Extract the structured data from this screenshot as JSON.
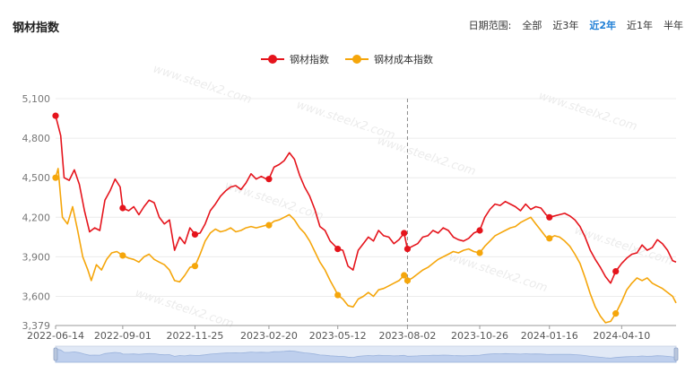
{
  "header": {
    "title": "钢材指数",
    "range_label": "日期范围:",
    "range_options": [
      "全部",
      "近3年",
      "近2年",
      "近1年",
      "半年"
    ],
    "active_range": "近2年"
  },
  "watermark": "www.steelx2.com",
  "colors": {
    "steel": "#e5141c",
    "cost": "#f5a60b",
    "accent": "#1f7fd6"
  },
  "chart_data": {
    "type": "line",
    "x_tick_labels": [
      "2022-06-14",
      "2022-09-01",
      "2022-11-25",
      "2023-02-20",
      "2023-05-12",
      "2023-08-02",
      "2023-10-26",
      "2024-01-16",
      "2024-04-10"
    ],
    "x_marker_line": "2023-08-02",
    "y_ticks": [
      3379,
      3600,
      3900,
      4200,
      4500,
      4800,
      5100
    ],
    "y_tick_labels": [
      "3,379",
      "3,600",
      "3,900",
      "4,200",
      "4,500",
      "4,800",
      "5,100"
    ],
    "ylim": [
      3379,
      5100
    ],
    "grid": true,
    "legend_position": "top-center",
    "series": [
      {
        "name": "钢材指数",
        "color": "#e5141c",
        "points": [
          [
            "2022-06-14",
            4970
          ],
          [
            "2022-06-20",
            4820
          ],
          [
            "2022-06-24",
            4500
          ],
          [
            "2022-06-30",
            4480
          ],
          [
            "2022-07-06",
            4560
          ],
          [
            "2022-07-12",
            4450
          ],
          [
            "2022-07-18",
            4250
          ],
          [
            "2022-07-24",
            4090
          ],
          [
            "2022-07-30",
            4120
          ],
          [
            "2022-08-05",
            4100
          ],
          [
            "2022-08-11",
            4330
          ],
          [
            "2022-08-17",
            4400
          ],
          [
            "2022-08-23",
            4490
          ],
          [
            "2022-08-29",
            4430
          ],
          [
            "2022-09-01",
            4270
          ],
          [
            "2022-09-08",
            4250
          ],
          [
            "2022-09-14",
            4280
          ],
          [
            "2022-09-20",
            4220
          ],
          [
            "2022-09-26",
            4280
          ],
          [
            "2022-10-02",
            4330
          ],
          [
            "2022-10-08",
            4310
          ],
          [
            "2022-10-14",
            4200
          ],
          [
            "2022-10-20",
            4150
          ],
          [
            "2022-10-26",
            4180
          ],
          [
            "2022-11-01",
            3950
          ],
          [
            "2022-11-07",
            4050
          ],
          [
            "2022-11-13",
            4000
          ],
          [
            "2022-11-19",
            4120
          ],
          [
            "2022-11-25",
            4070
          ],
          [
            "2022-12-01",
            4080
          ],
          [
            "2022-12-07",
            4150
          ],
          [
            "2022-12-13",
            4250
          ],
          [
            "2022-12-19",
            4300
          ],
          [
            "2022-12-25",
            4360
          ],
          [
            "2022-12-31",
            4400
          ],
          [
            "2023-01-06",
            4430
          ],
          [
            "2023-01-12",
            4440
          ],
          [
            "2023-01-18",
            4410
          ],
          [
            "2023-01-24",
            4460
          ],
          [
            "2023-01-30",
            4530
          ],
          [
            "2023-02-05",
            4490
          ],
          [
            "2023-02-11",
            4510
          ],
          [
            "2023-02-17",
            4490
          ],
          [
            "2023-02-20",
            4490
          ],
          [
            "2023-02-26",
            4580
          ],
          [
            "2023-03-04",
            4600
          ],
          [
            "2023-03-10",
            4630
          ],
          [
            "2023-03-16",
            4690
          ],
          [
            "2023-03-22",
            4640
          ],
          [
            "2023-03-28",
            4520
          ],
          [
            "2023-04-03",
            4430
          ],
          [
            "2023-04-09",
            4360
          ],
          [
            "2023-04-15",
            4260
          ],
          [
            "2023-04-21",
            4130
          ],
          [
            "2023-04-27",
            4100
          ],
          [
            "2023-05-03",
            4020
          ],
          [
            "2023-05-09",
            3980
          ],
          [
            "2023-05-12",
            3960
          ],
          [
            "2023-05-18",
            3950
          ],
          [
            "2023-05-24",
            3830
          ],
          [
            "2023-05-30",
            3800
          ],
          [
            "2023-06-05",
            3950
          ],
          [
            "2023-06-11",
            4000
          ],
          [
            "2023-06-17",
            4050
          ],
          [
            "2023-06-23",
            4020
          ],
          [
            "2023-06-29",
            4100
          ],
          [
            "2023-07-05",
            4060
          ],
          [
            "2023-07-11",
            4050
          ],
          [
            "2023-07-17",
            4000
          ],
          [
            "2023-07-23",
            4030
          ],
          [
            "2023-07-29",
            4080
          ],
          [
            "2023-08-02",
            3960
          ],
          [
            "2023-08-08",
            3980
          ],
          [
            "2023-08-14",
            4000
          ],
          [
            "2023-08-20",
            4050
          ],
          [
            "2023-08-26",
            4060
          ],
          [
            "2023-09-01",
            4100
          ],
          [
            "2023-09-07",
            4080
          ],
          [
            "2023-09-13",
            4120
          ],
          [
            "2023-09-19",
            4100
          ],
          [
            "2023-09-25",
            4050
          ],
          [
            "2023-10-01",
            4030
          ],
          [
            "2023-10-07",
            4020
          ],
          [
            "2023-10-13",
            4040
          ],
          [
            "2023-10-19",
            4080
          ],
          [
            "2023-10-26",
            4100
          ],
          [
            "2023-11-01",
            4200
          ],
          [
            "2023-11-07",
            4260
          ],
          [
            "2023-11-13",
            4300
          ],
          [
            "2023-11-19",
            4290
          ],
          [
            "2023-11-25",
            4320
          ],
          [
            "2023-12-01",
            4300
          ],
          [
            "2023-12-07",
            4280
          ],
          [
            "2023-12-13",
            4250
          ],
          [
            "2023-12-19",
            4300
          ],
          [
            "2023-12-25",
            4260
          ],
          [
            "2023-12-31",
            4280
          ],
          [
            "2024-01-06",
            4270
          ],
          [
            "2024-01-12",
            4220
          ],
          [
            "2024-01-16",
            4200
          ],
          [
            "2024-01-22",
            4210
          ],
          [
            "2024-01-28",
            4220
          ],
          [
            "2024-02-03",
            4230
          ],
          [
            "2024-02-09",
            4210
          ],
          [
            "2024-02-15",
            4180
          ],
          [
            "2024-02-21",
            4130
          ],
          [
            "2024-02-27",
            4050
          ],
          [
            "2024-03-04",
            3950
          ],
          [
            "2024-03-10",
            3880
          ],
          [
            "2024-03-16",
            3820
          ],
          [
            "2024-03-22",
            3750
          ],
          [
            "2024-03-28",
            3700
          ],
          [
            "2024-04-03",
            3790
          ],
          [
            "2024-04-10",
            3850
          ],
          [
            "2024-04-16",
            3890
          ],
          [
            "2024-04-22",
            3920
          ],
          [
            "2024-04-28",
            3930
          ],
          [
            "2024-05-04",
            3990
          ],
          [
            "2024-05-10",
            3950
          ],
          [
            "2024-05-16",
            3970
          ],
          [
            "2024-05-22",
            4030
          ],
          [
            "2024-05-28",
            4000
          ],
          [
            "2024-06-03",
            3950
          ],
          [
            "2024-06-09",
            3870
          ],
          [
            "2024-06-13",
            3860
          ]
        ],
        "markers": [
          [
            "2022-06-14",
            4970
          ],
          [
            "2022-09-01",
            4270
          ],
          [
            "2022-11-25",
            4070
          ],
          [
            "2023-02-20",
            4490
          ],
          [
            "2023-05-12",
            3960
          ],
          [
            "2023-08-02",
            3960
          ],
          [
            "2023-07-29",
            4080
          ],
          [
            "2023-10-26",
            4100
          ],
          [
            "2024-01-16",
            4200
          ],
          [
            "2024-04-03",
            3790
          ]
        ]
      },
      {
        "name": "钢材成本指数",
        "color": "#f5a60b",
        "points": [
          [
            "2022-06-14",
            4500
          ],
          [
            "2022-06-17",
            4570
          ],
          [
            "2022-06-22",
            4200
          ],
          [
            "2022-06-28",
            4150
          ],
          [
            "2022-07-04",
            4280
          ],
          [
            "2022-07-10",
            4100
          ],
          [
            "2022-07-16",
            3900
          ],
          [
            "2022-07-22",
            3800
          ],
          [
            "2022-07-26",
            3720
          ],
          [
            "2022-08-01",
            3840
          ],
          [
            "2022-08-07",
            3800
          ],
          [
            "2022-08-13",
            3880
          ],
          [
            "2022-08-19",
            3930
          ],
          [
            "2022-08-25",
            3940
          ],
          [
            "2022-09-01",
            3910
          ],
          [
            "2022-09-08",
            3890
          ],
          [
            "2022-09-14",
            3880
          ],
          [
            "2022-09-20",
            3860
          ],
          [
            "2022-09-26",
            3900
          ],
          [
            "2022-10-02",
            3920
          ],
          [
            "2022-10-08",
            3880
          ],
          [
            "2022-10-14",
            3860
          ],
          [
            "2022-10-20",
            3840
          ],
          [
            "2022-10-26",
            3800
          ],
          [
            "2022-11-01",
            3720
          ],
          [
            "2022-11-07",
            3710
          ],
          [
            "2022-11-13",
            3760
          ],
          [
            "2022-11-19",
            3820
          ],
          [
            "2022-11-25",
            3830
          ],
          [
            "2022-12-01",
            3920
          ],
          [
            "2022-12-07",
            4020
          ],
          [
            "2022-12-13",
            4080
          ],
          [
            "2022-12-19",
            4110
          ],
          [
            "2022-12-25",
            4090
          ],
          [
            "2022-12-31",
            4100
          ],
          [
            "2023-01-06",
            4120
          ],
          [
            "2023-01-12",
            4090
          ],
          [
            "2023-01-18",
            4100
          ],
          [
            "2023-01-24",
            4120
          ],
          [
            "2023-01-30",
            4130
          ],
          [
            "2023-02-05",
            4120
          ],
          [
            "2023-02-11",
            4130
          ],
          [
            "2023-02-17",
            4140
          ],
          [
            "2023-02-20",
            4140
          ],
          [
            "2023-02-26",
            4170
          ],
          [
            "2023-03-04",
            4180
          ],
          [
            "2023-03-10",
            4200
          ],
          [
            "2023-03-16",
            4220
          ],
          [
            "2023-03-22",
            4180
          ],
          [
            "2023-03-28",
            4120
          ],
          [
            "2023-04-03",
            4080
          ],
          [
            "2023-04-09",
            4020
          ],
          [
            "2023-04-15",
            3940
          ],
          [
            "2023-04-21",
            3860
          ],
          [
            "2023-04-27",
            3800
          ],
          [
            "2023-05-03",
            3720
          ],
          [
            "2023-05-09",
            3650
          ],
          [
            "2023-05-12",
            3610
          ],
          [
            "2023-05-18",
            3580
          ],
          [
            "2023-05-24",
            3530
          ],
          [
            "2023-05-30",
            3520
          ],
          [
            "2023-06-05",
            3580
          ],
          [
            "2023-06-11",
            3600
          ],
          [
            "2023-06-17",
            3630
          ],
          [
            "2023-06-23",
            3600
          ],
          [
            "2023-06-29",
            3650
          ],
          [
            "2023-07-05",
            3660
          ],
          [
            "2023-07-11",
            3680
          ],
          [
            "2023-07-17",
            3700
          ],
          [
            "2023-07-23",
            3720
          ],
          [
            "2023-07-29",
            3760
          ],
          [
            "2023-08-02",
            3720
          ],
          [
            "2023-08-08",
            3740
          ],
          [
            "2023-08-14",
            3770
          ],
          [
            "2023-08-20",
            3800
          ],
          [
            "2023-08-26",
            3820
          ],
          [
            "2023-09-01",
            3850
          ],
          [
            "2023-09-07",
            3880
          ],
          [
            "2023-09-13",
            3900
          ],
          [
            "2023-09-19",
            3920
          ],
          [
            "2023-09-25",
            3940
          ],
          [
            "2023-10-01",
            3930
          ],
          [
            "2023-10-07",
            3950
          ],
          [
            "2023-10-13",
            3960
          ],
          [
            "2023-10-19",
            3940
          ],
          [
            "2023-10-26",
            3930
          ],
          [
            "2023-11-01",
            3980
          ],
          [
            "2023-11-07",
            4020
          ],
          [
            "2023-11-13",
            4060
          ],
          [
            "2023-11-19",
            4080
          ],
          [
            "2023-11-25",
            4100
          ],
          [
            "2023-12-01",
            4120
          ],
          [
            "2023-12-07",
            4130
          ],
          [
            "2023-12-13",
            4160
          ],
          [
            "2023-12-19",
            4180
          ],
          [
            "2023-12-25",
            4200
          ],
          [
            "2023-12-31",
            4150
          ],
          [
            "2024-01-06",
            4100
          ],
          [
            "2024-01-12",
            4050
          ],
          [
            "2024-01-16",
            4040
          ],
          [
            "2024-01-22",
            4060
          ],
          [
            "2024-01-28",
            4050
          ],
          [
            "2024-02-03",
            4020
          ],
          [
            "2024-02-09",
            3980
          ],
          [
            "2024-02-15",
            3920
          ],
          [
            "2024-02-21",
            3850
          ],
          [
            "2024-02-27",
            3740
          ],
          [
            "2024-03-04",
            3620
          ],
          [
            "2024-03-10",
            3520
          ],
          [
            "2024-03-16",
            3450
          ],
          [
            "2024-03-22",
            3400
          ],
          [
            "2024-03-28",
            3410
          ],
          [
            "2024-04-03",
            3470
          ],
          [
            "2024-04-10",
            3560
          ],
          [
            "2024-04-16",
            3650
          ],
          [
            "2024-04-22",
            3700
          ],
          [
            "2024-04-28",
            3740
          ],
          [
            "2024-05-04",
            3720
          ],
          [
            "2024-05-10",
            3740
          ],
          [
            "2024-05-16",
            3700
          ],
          [
            "2024-05-22",
            3680
          ],
          [
            "2024-05-28",
            3660
          ],
          [
            "2024-06-03",
            3630
          ],
          [
            "2024-06-09",
            3600
          ],
          [
            "2024-06-13",
            3550
          ]
        ],
        "markers": [
          [
            "2022-06-14",
            4500
          ],
          [
            "2022-09-01",
            3910
          ],
          [
            "2022-11-25",
            3830
          ],
          [
            "2023-02-20",
            4140
          ],
          [
            "2023-05-12",
            3610
          ],
          [
            "2023-08-02",
            3720
          ],
          [
            "2023-07-29",
            3760
          ],
          [
            "2023-10-26",
            3930
          ],
          [
            "2024-01-16",
            4040
          ],
          [
            "2024-04-03",
            3470
          ]
        ]
      }
    ]
  }
}
